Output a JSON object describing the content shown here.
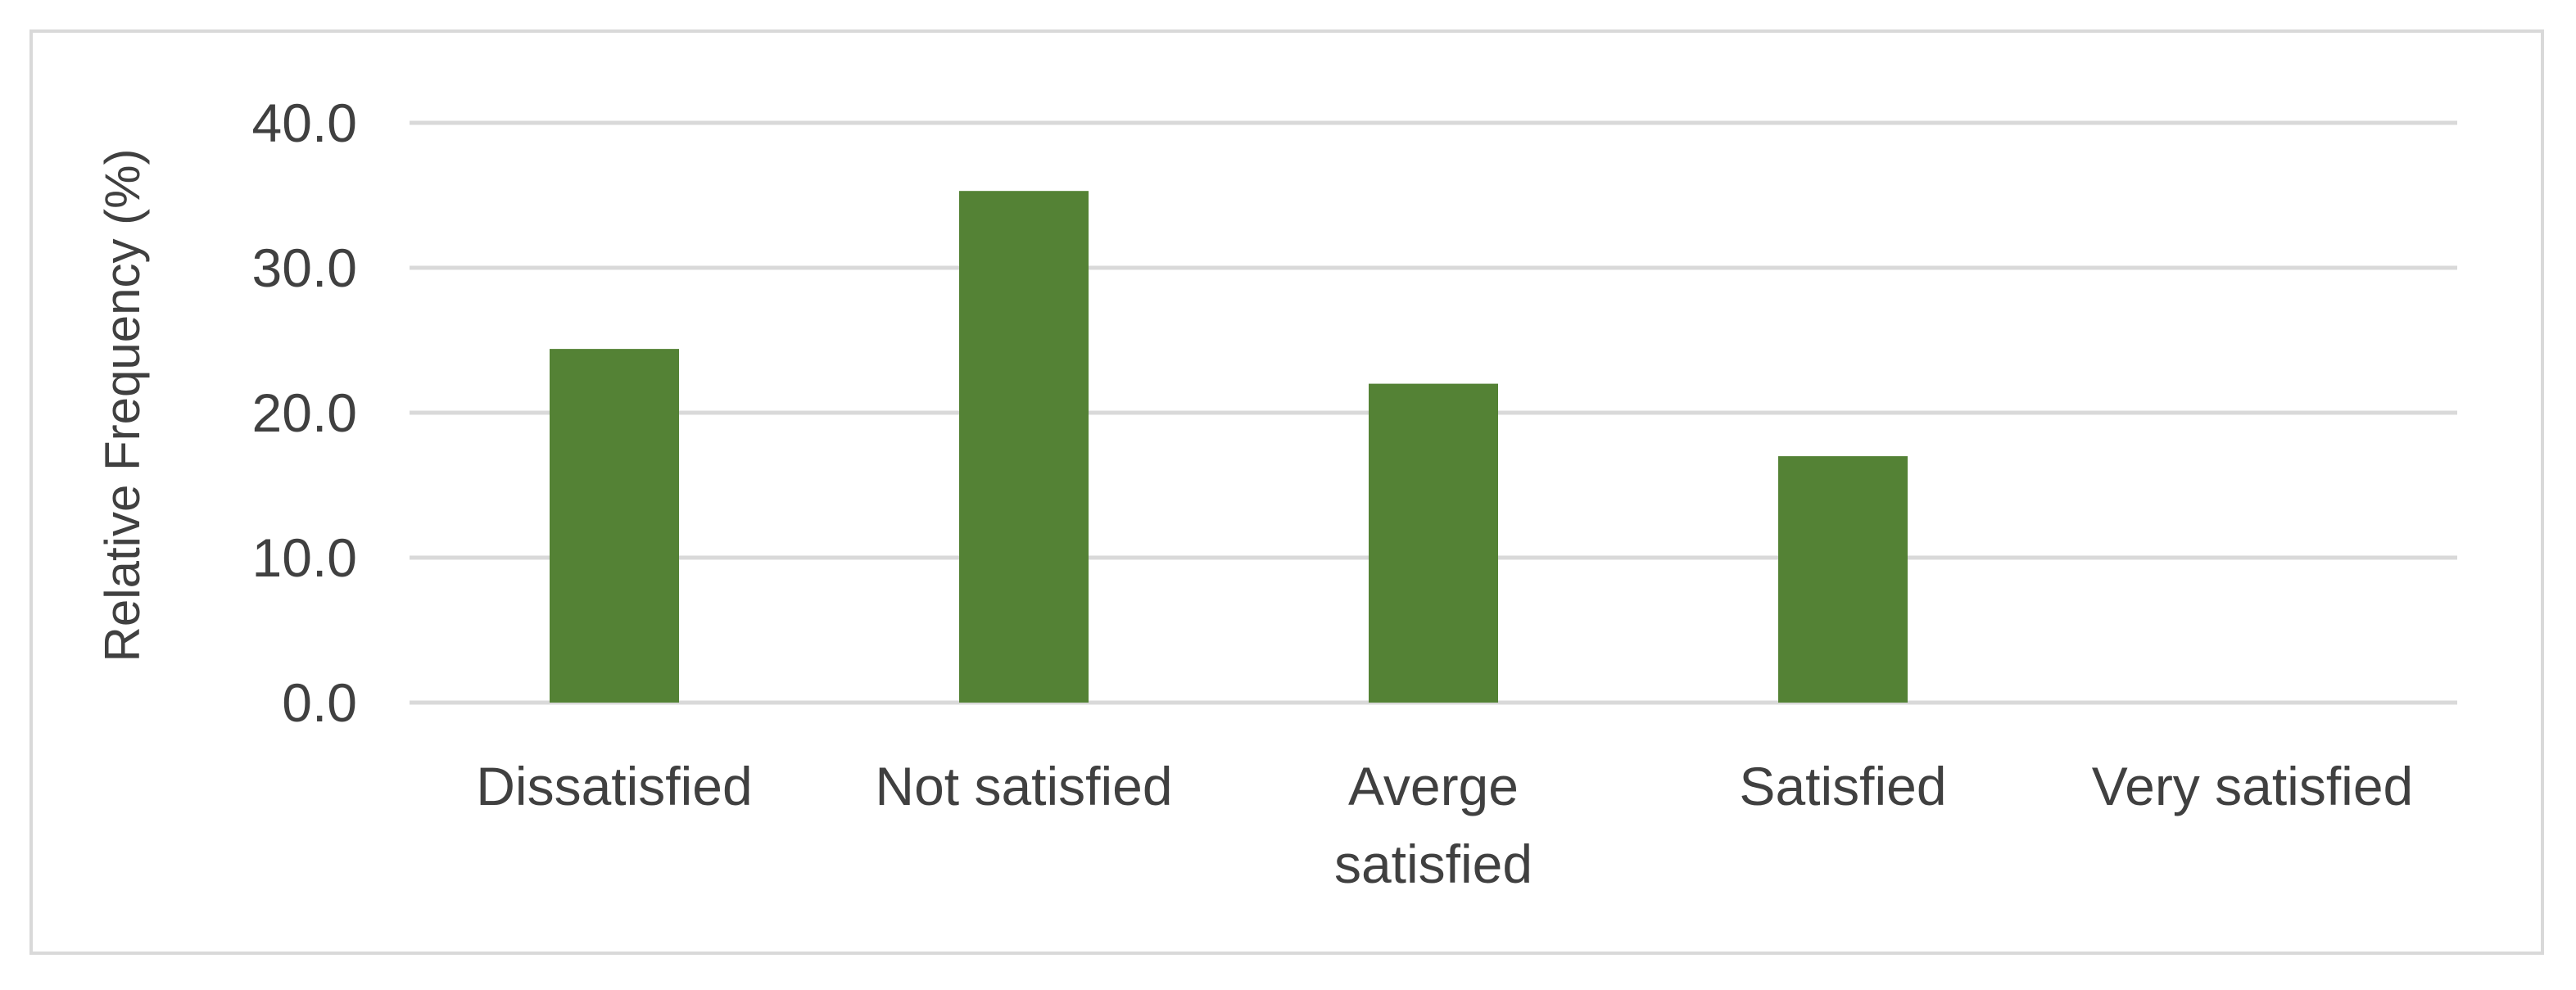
{
  "chart_data": {
    "type": "bar",
    "title": "",
    "xlabel": "",
    "ylabel": "Relative Frequency (%)",
    "categories": [
      [
        "Dissatisfied"
      ],
      [
        "Not satisfied"
      ],
      [
        "Averge",
        "satisfied"
      ],
      [
        "Satisfied"
      ],
      [
        "Very satisfied"
      ]
    ],
    "values": [
      24.4,
      35.3,
      22.0,
      17.0,
      0.0
    ],
    "ylim": [
      0,
      40
    ],
    "yticks": [
      "0.0",
      "10.0",
      "20.0",
      "30.0",
      "40.0"
    ],
    "grid": true,
    "legend": "none",
    "colors": {
      "bar": "#548235",
      "grid": "#d9d9d9",
      "text": "#404040"
    }
  }
}
